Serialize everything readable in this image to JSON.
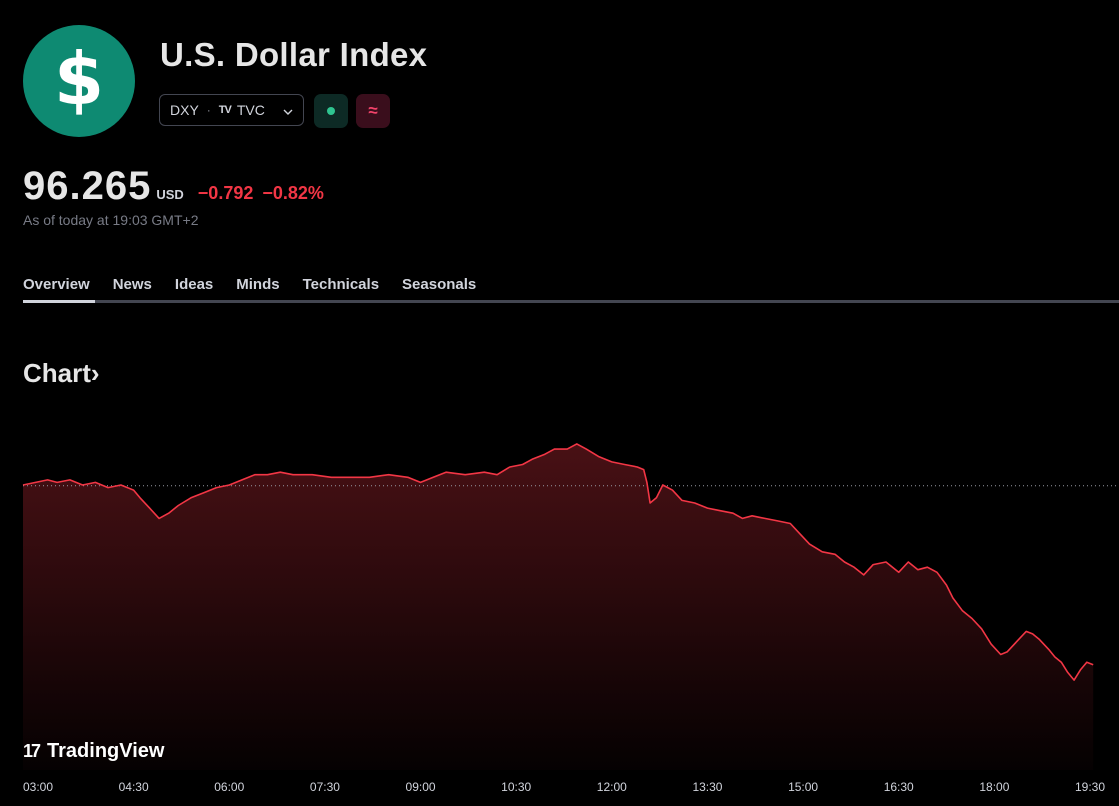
{
  "header": {
    "logo_symbol": "$",
    "logo_color": "#0e8a72",
    "title": "U.S. Dollar Index",
    "symbol": "DXY",
    "separator": "·",
    "exchange_mark": "TV",
    "exchange": "TVC",
    "market_status_icon": "market-open-dot-icon",
    "data_status_icon": "delayed-data-icon",
    "data_status_glyph": "≈"
  },
  "quote": {
    "price": "96.265",
    "currency": "USD",
    "change": "−0.792",
    "change_percent": "−0.82%",
    "as_of": "As of today at 19:03 GMT+2",
    "down_color": "#f23645"
  },
  "tabs": [
    "Overview",
    "News",
    "Ideas",
    "Minds",
    "Technicals",
    "Seasonals"
  ],
  "active_tab": "Overview",
  "chart_heading": "Chart",
  "chart_heading_chevron": "›",
  "brand": {
    "mark": "17",
    "name": "TradingView"
  },
  "chart_data": {
    "type": "area",
    "title": "",
    "xlabel": "",
    "ylabel": "",
    "x_ticks": [
      "03:00",
      "04:30",
      "06:00",
      "07:30",
      "09:00",
      "10:30",
      "12:00",
      "13:30",
      "15:00",
      "16:30",
      "18:00",
      "19:30"
    ],
    "x_unit": "hours_since_03:00",
    "x_range": [
      0,
      16.5
    ],
    "prev_close": 97.057,
    "y_range": [
      95.95,
      97.43
    ],
    "line_color": "#f23645",
    "series": [
      {
        "name": "DXY",
        "points": [
          [
            0.0,
            97.06
          ],
          [
            0.15,
            97.08
          ],
          [
            0.3,
            97.07
          ],
          [
            0.5,
            97.08
          ],
          [
            0.7,
            97.06
          ],
          [
            0.9,
            97.07
          ],
          [
            1.1,
            97.05
          ],
          [
            1.3,
            97.06
          ],
          [
            1.5,
            97.04
          ],
          [
            1.6,
            97.01
          ],
          [
            1.75,
            96.97
          ],
          [
            1.9,
            96.93
          ],
          [
            2.05,
            96.95
          ],
          [
            2.2,
            96.98
          ],
          [
            2.4,
            97.01
          ],
          [
            2.6,
            97.03
          ],
          [
            2.8,
            97.05
          ],
          [
            3.0,
            97.06
          ],
          [
            3.2,
            97.08
          ],
          [
            3.4,
            97.1
          ],
          [
            3.6,
            97.1
          ],
          [
            3.8,
            97.11
          ],
          [
            4.0,
            97.1
          ],
          [
            4.3,
            97.1
          ],
          [
            4.6,
            97.09
          ],
          [
            4.9,
            97.09
          ],
          [
            5.2,
            97.09
          ],
          [
            5.5,
            97.1
          ],
          [
            5.8,
            97.09
          ],
          [
            6.0,
            97.07
          ],
          [
            6.2,
            97.09
          ],
          [
            6.4,
            97.11
          ],
          [
            6.7,
            97.1
          ],
          [
            7.0,
            97.11
          ],
          [
            7.2,
            97.1
          ],
          [
            7.4,
            97.13
          ],
          [
            7.6,
            97.14
          ],
          [
            7.75,
            97.16
          ],
          [
            7.95,
            97.18
          ],
          [
            8.1,
            97.2
          ],
          [
            8.3,
            97.2
          ],
          [
            8.45,
            97.22
          ],
          [
            8.6,
            97.2
          ],
          [
            8.8,
            97.17
          ],
          [
            9.0,
            97.15
          ],
          [
            9.2,
            97.14
          ],
          [
            9.4,
            97.13
          ],
          [
            9.5,
            97.12
          ],
          [
            9.55,
            97.07
          ],
          [
            9.6,
            96.99
          ],
          [
            9.7,
            97.01
          ],
          [
            9.8,
            97.06
          ],
          [
            9.95,
            97.04
          ],
          [
            10.1,
            97.0
          ],
          [
            10.3,
            96.99
          ],
          [
            10.5,
            96.97
          ],
          [
            10.7,
            96.96
          ],
          [
            10.9,
            96.95
          ],
          [
            11.05,
            96.93
          ],
          [
            11.2,
            96.94
          ],
          [
            11.4,
            96.93
          ],
          [
            11.6,
            96.92
          ],
          [
            11.8,
            96.91
          ],
          [
            11.95,
            96.87
          ],
          [
            12.1,
            96.83
          ],
          [
            12.3,
            96.8
          ],
          [
            12.5,
            96.79
          ],
          [
            12.65,
            96.76
          ],
          [
            12.8,
            96.74
          ],
          [
            12.95,
            96.71
          ],
          [
            13.1,
            96.75
          ],
          [
            13.3,
            96.76
          ],
          [
            13.5,
            96.72
          ],
          [
            13.65,
            96.76
          ],
          [
            13.8,
            96.73
          ],
          [
            13.95,
            96.74
          ],
          [
            14.1,
            96.72
          ],
          [
            14.25,
            96.67
          ],
          [
            14.35,
            96.62
          ],
          [
            14.5,
            96.57
          ],
          [
            14.65,
            96.54
          ],
          [
            14.8,
            96.5
          ],
          [
            14.95,
            96.44
          ],
          [
            15.1,
            96.4
          ],
          [
            15.2,
            96.41
          ],
          [
            15.35,
            96.45
          ],
          [
            15.5,
            96.49
          ],
          [
            15.6,
            96.48
          ],
          [
            15.7,
            96.46
          ],
          [
            15.85,
            96.42
          ],
          [
            15.95,
            96.39
          ],
          [
            16.05,
            96.37
          ],
          [
            16.15,
            96.33
          ],
          [
            16.25,
            96.3
          ],
          [
            16.35,
            96.34
          ],
          [
            16.45,
            96.37
          ],
          [
            16.55,
            96.36
          ]
        ]
      }
    ]
  }
}
